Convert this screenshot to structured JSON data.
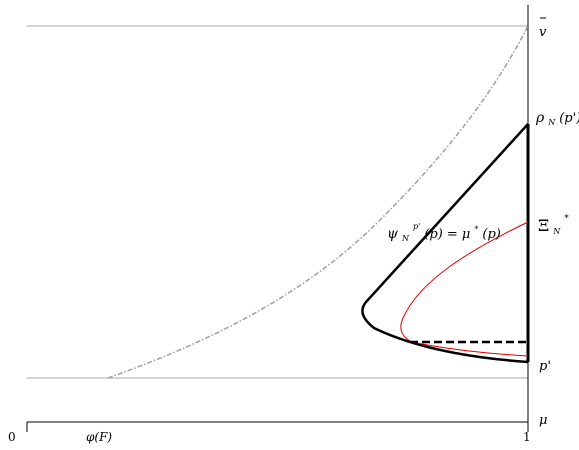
{
  "labels": {
    "x_origin": "0",
    "x_phi": "φ(F)",
    "x_one": "1",
    "v_bar": "v",
    "rho_main": "ρ",
    "rho_sub": "N",
    "rho_arg": "(p')",
    "xi_main": "Ξ",
    "xi_sub": "N",
    "xi_sup": "*",
    "p_prime": "p'",
    "mu": "μ",
    "psi_main": "ψ",
    "psi_sub": "N",
    "psi_sup": "p'",
    "psi_arg": "(p) = μ",
    "psi_star": "*",
    "psi_end": "(p)"
  },
  "colors": {
    "thick_curve": "#000000",
    "red_curve": "#e00000",
    "gray_curve": "#a0a0a0",
    "guide_line": "#a8a8a8"
  }
}
